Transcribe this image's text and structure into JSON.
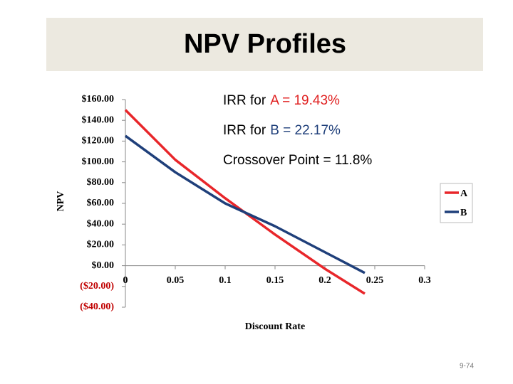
{
  "chart_data": {
    "type": "line",
    "title": "NPV Profiles",
    "annotations": [
      {
        "text": "IRR for",
        "highlight": "A = 19.43%",
        "color": "#e02020"
      },
      {
        "text": "IRR for",
        "highlight": "B = 22.17%",
        "color": "#1f3f7a"
      },
      {
        "text": "Crossover Point = 11.8%"
      }
    ],
    "x_label": "Discount Rate",
    "y_label": "NPV",
    "x": [
      0,
      0.05,
      0.1,
      0.15,
      0.2,
      0.24
    ],
    "series": [
      {
        "name": "A",
        "color": "#e8262a",
        "values": [
          150,
          102,
          65,
          30,
          -3,
          -27
        ]
      },
      {
        "name": "B",
        "color": "#1f3f7a",
        "values": [
          125,
          90,
          60,
          38,
          13,
          -7
        ]
      }
    ],
    "xlim": [
      0,
      0.3
    ],
    "xticks": [
      0,
      0.05,
      0.1,
      0.15,
      0.2,
      0.25,
      0.3
    ],
    "ylim": [
      -40,
      160
    ],
    "yticks": [
      {
        "value": -40,
        "label": "($40.00)"
      },
      {
        "value": -20,
        "label": "($20.00)"
      },
      {
        "value": 0,
        "label": "$0.00"
      },
      {
        "value": 20,
        "label": "$20.00"
      },
      {
        "value": 40,
        "label": "$40.00"
      },
      {
        "value": 60,
        "label": "$60.00"
      },
      {
        "value": 80,
        "label": "$80.00"
      },
      {
        "value": 100,
        "label": "$100.00"
      },
      {
        "value": 120,
        "label": "$120.00"
      },
      {
        "value": 140,
        "label": "$140.00"
      },
      {
        "value": 160,
        "label": "$160.00"
      }
    ],
    "negative_label_color": "#c00000",
    "legend": "right",
    "page_number": "9-74"
  }
}
